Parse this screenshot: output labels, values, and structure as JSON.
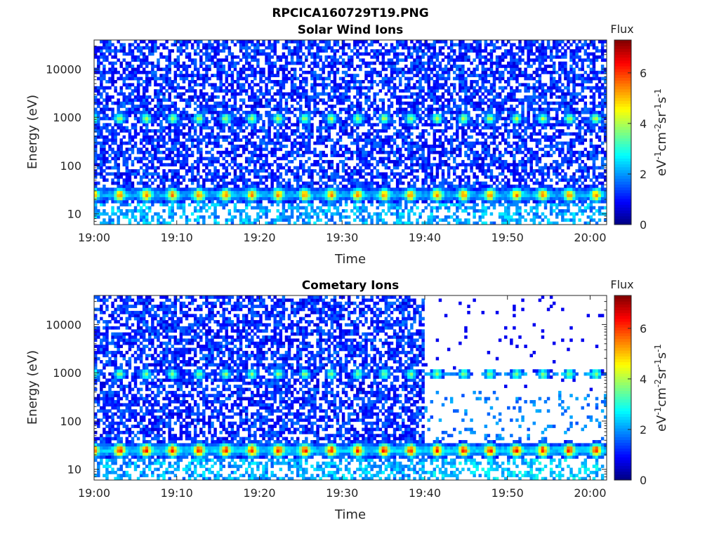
{
  "figure": {
    "title": "RPCICA160729T19.PNG"
  },
  "chart_data": [
    {
      "type": "heatmap",
      "title": "Solar Wind Ions",
      "xlabel": "Time",
      "ylabel": "Energy (eV)",
      "y_scale": "log",
      "xlim": [
        "19:00",
        "20:02"
      ],
      "ylim": [
        6,
        40000
      ],
      "x_ticks": [
        "19:00",
        "19:10",
        "19:20",
        "19:30",
        "19:40",
        "19:50",
        "20:00"
      ],
      "y_ticks": [
        "10",
        "100",
        "1000",
        "10000"
      ],
      "colorbar": {
        "label": "Flux",
        "unit_label": "eV-1cm-2sr-1s-1",
        "range": [
          0,
          7.3
        ],
        "ticks": [
          "0",
          "2",
          "4",
          "6"
        ],
        "colormap": "jet"
      },
      "pattern": {
        "period_minutes": 3.2,
        "band_low_eV": 25,
        "band_low_peak": 5.2,
        "band_high_eV": 950,
        "band_high_peak": 3.8,
        "cutoff_time": null
      }
    },
    {
      "type": "heatmap",
      "title": "Cometary Ions",
      "xlabel": "Time",
      "ylabel": "Energy (eV)",
      "y_scale": "log",
      "xlim": [
        "19:00",
        "20:02"
      ],
      "ylim": [
        6,
        40000
      ],
      "x_ticks": [
        "19:00",
        "19:10",
        "19:20",
        "19:30",
        "19:40",
        "19:50",
        "20:00"
      ],
      "y_ticks": [
        "10",
        "100",
        "1000",
        "10000"
      ],
      "colorbar": {
        "label": "Flux",
        "unit_label": "eV-1cm-2sr-1s-1",
        "range": [
          0,
          7.3
        ],
        "ticks": [
          "0",
          "2",
          "4",
          "6"
        ],
        "colormap": "jet"
      },
      "pattern": {
        "period_minutes": 3.2,
        "band_low_eV": 25,
        "band_low_peak": 6.0,
        "band_high_eV": 950,
        "band_high_peak": 3.5,
        "cutoff_time": "19:40"
      }
    }
  ]
}
